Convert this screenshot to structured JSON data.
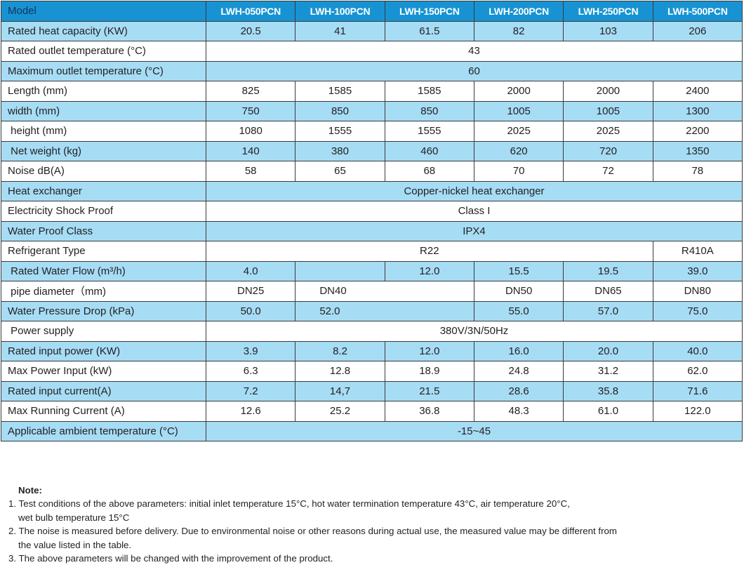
{
  "header": {
    "label": "Model",
    "models": [
      "LWH-050PCN",
      "LWH-100PCN",
      "LWH-150PCN",
      "LWH-200PCN",
      "LWH-250PCN",
      "LWH-500PCN"
    ]
  },
  "rows": [
    {
      "label": "Rated heat capacity (KW)",
      "cells": [
        {
          "v": "20.5"
        },
        {
          "v": "41"
        },
        {
          "v": "61.5"
        },
        {
          "v": "82"
        },
        {
          "v": "103"
        },
        {
          "v": "206"
        }
      ]
    },
    {
      "label": "Rated outlet temperature (°C)",
      "cells": [
        {
          "v": "43",
          "span": 6
        }
      ]
    },
    {
      "label": "Maximum outlet temperature (°C)",
      "cells": [
        {
          "v": "60",
          "span": 6
        }
      ]
    },
    {
      "label": "Length (mm)",
      "cells": [
        {
          "v": "825"
        },
        {
          "v": "1585"
        },
        {
          "v": "1585"
        },
        {
          "v": "2000"
        },
        {
          "v": "2000"
        },
        {
          "v": "2400"
        }
      ]
    },
    {
      "label": "width (mm)",
      "cells": [
        {
          "v": "750"
        },
        {
          "v": "850"
        },
        {
          "v": "850"
        },
        {
          "v": "1005"
        },
        {
          "v": "1005"
        },
        {
          "v": "1300"
        }
      ]
    },
    {
      "label": " height (mm)",
      "cells": [
        {
          "v": "1080"
        },
        {
          "v": "1555"
        },
        {
          "v": "1555"
        },
        {
          "v": "2025"
        },
        {
          "v": "2025"
        },
        {
          "v": "2200"
        }
      ]
    },
    {
      "label": " Net weight (kg)",
      "cells": [
        {
          "v": "140"
        },
        {
          "v": "380"
        },
        {
          "v": "460"
        },
        {
          "v": "620"
        },
        {
          "v": "720"
        },
        {
          "v": "1350"
        }
      ]
    },
    {
      "label": "Noise dB(A)",
      "cells": [
        {
          "v": "58"
        },
        {
          "v": "65"
        },
        {
          "v": "68"
        },
        {
          "v": "70"
        },
        {
          "v": "72"
        },
        {
          "v": "78"
        }
      ]
    },
    {
      "label": "Heat exchanger",
      "cells": [
        {
          "v": "Copper-nickel heat exchanger",
          "span": 6
        }
      ]
    },
    {
      "label": "Electricity Shock Proof",
      "cells": [
        {
          "v": "Class I",
          "span": 6
        }
      ]
    },
    {
      "label": "Water Proof Class",
      "cells": [
        {
          "v": "IPX4",
          "span": 6
        }
      ]
    },
    {
      "label": "Refrigerant Type",
      "cells": [
        {
          "v": "R22",
          "span": 5
        },
        {
          "v": "R410A"
        }
      ]
    },
    {
      "label": " Rated Water Flow (m³/h)",
      "cells": [
        {
          "v": "4.0"
        },
        {
          "v": ""
        },
        {
          "v": "12.0"
        },
        {
          "v": "15.5"
        },
        {
          "v": "19.5"
        },
        {
          "v": "39.0"
        }
      ]
    },
    {
      "label": " pipe diameter（mm)",
      "cells": [
        {
          "v": "DN25"
        },
        {
          "v": "DN40",
          "span": 2,
          "align": "left"
        },
        {
          "v": "DN50"
        },
        {
          "v": "DN65"
        },
        {
          "v": "DN80"
        }
      ]
    },
    {
      "label": "Water Pressure Drop (kPa)",
      "cells": [
        {
          "v": "50.0"
        },
        {
          "v": "52.0",
          "span": 2,
          "align": "left"
        },
        {
          "v": "55.0"
        },
        {
          "v": "57.0"
        },
        {
          "v": "75.0"
        }
      ]
    },
    {
      "label": " Power supply",
      "cells": [
        {
          "v": "380V/3N/50Hz",
          "span": 6
        }
      ]
    },
    {
      "label": "Rated input power (KW)",
      "cells": [
        {
          "v": "3.9"
        },
        {
          "v": "8.2"
        },
        {
          "v": "12.0"
        },
        {
          "v": "16.0"
        },
        {
          "v": "20.0"
        },
        {
          "v": "40.0"
        }
      ]
    },
    {
      "label": "Max Power Input (kW)",
      "cells": [
        {
          "v": "6.3"
        },
        {
          "v": "12.8"
        },
        {
          "v": "18.9"
        },
        {
          "v": "24.8"
        },
        {
          "v": "31.2"
        },
        {
          "v": "62.0"
        }
      ]
    },
    {
      "label": "Rated input current(A)",
      "cells": [
        {
          "v": "7.2"
        },
        {
          "v": "14,7"
        },
        {
          "v": "21.5"
        },
        {
          "v": "28.6"
        },
        {
          "v": "35.8"
        },
        {
          "v": "71.6"
        }
      ]
    },
    {
      "label": "Max Running Current (A)",
      "cells": [
        {
          "v": "12.6"
        },
        {
          "v": "25.2"
        },
        {
          "v": "36.8"
        },
        {
          "v": "48.3"
        },
        {
          "v": "61.0"
        },
        {
          "v": "122.0"
        }
      ]
    },
    {
      "label": "Applicable ambient temperature (°C)",
      "cells": [
        {
          "v": "-15~45",
          "span": 6
        }
      ]
    }
  ],
  "notes": {
    "title": "Note:",
    "items": [
      "1. Test conditions of the above parameters: initial inlet temperature 15°C, hot water termination temperature 43°C, air temperature 20°C,\nwet bulb temperature 15°C",
      "2. The noise is measured before delivery. Due to environmental noise or other reasons during actual use, the measured value may be different from\nthe value listed in the table.",
      "3. The above parameters will be changed with the improvement of the product."
    ]
  },
  "colors": {
    "header": "#1793d3",
    "stripe": "#a7dcf5",
    "border": "#3a3a3a"
  }
}
